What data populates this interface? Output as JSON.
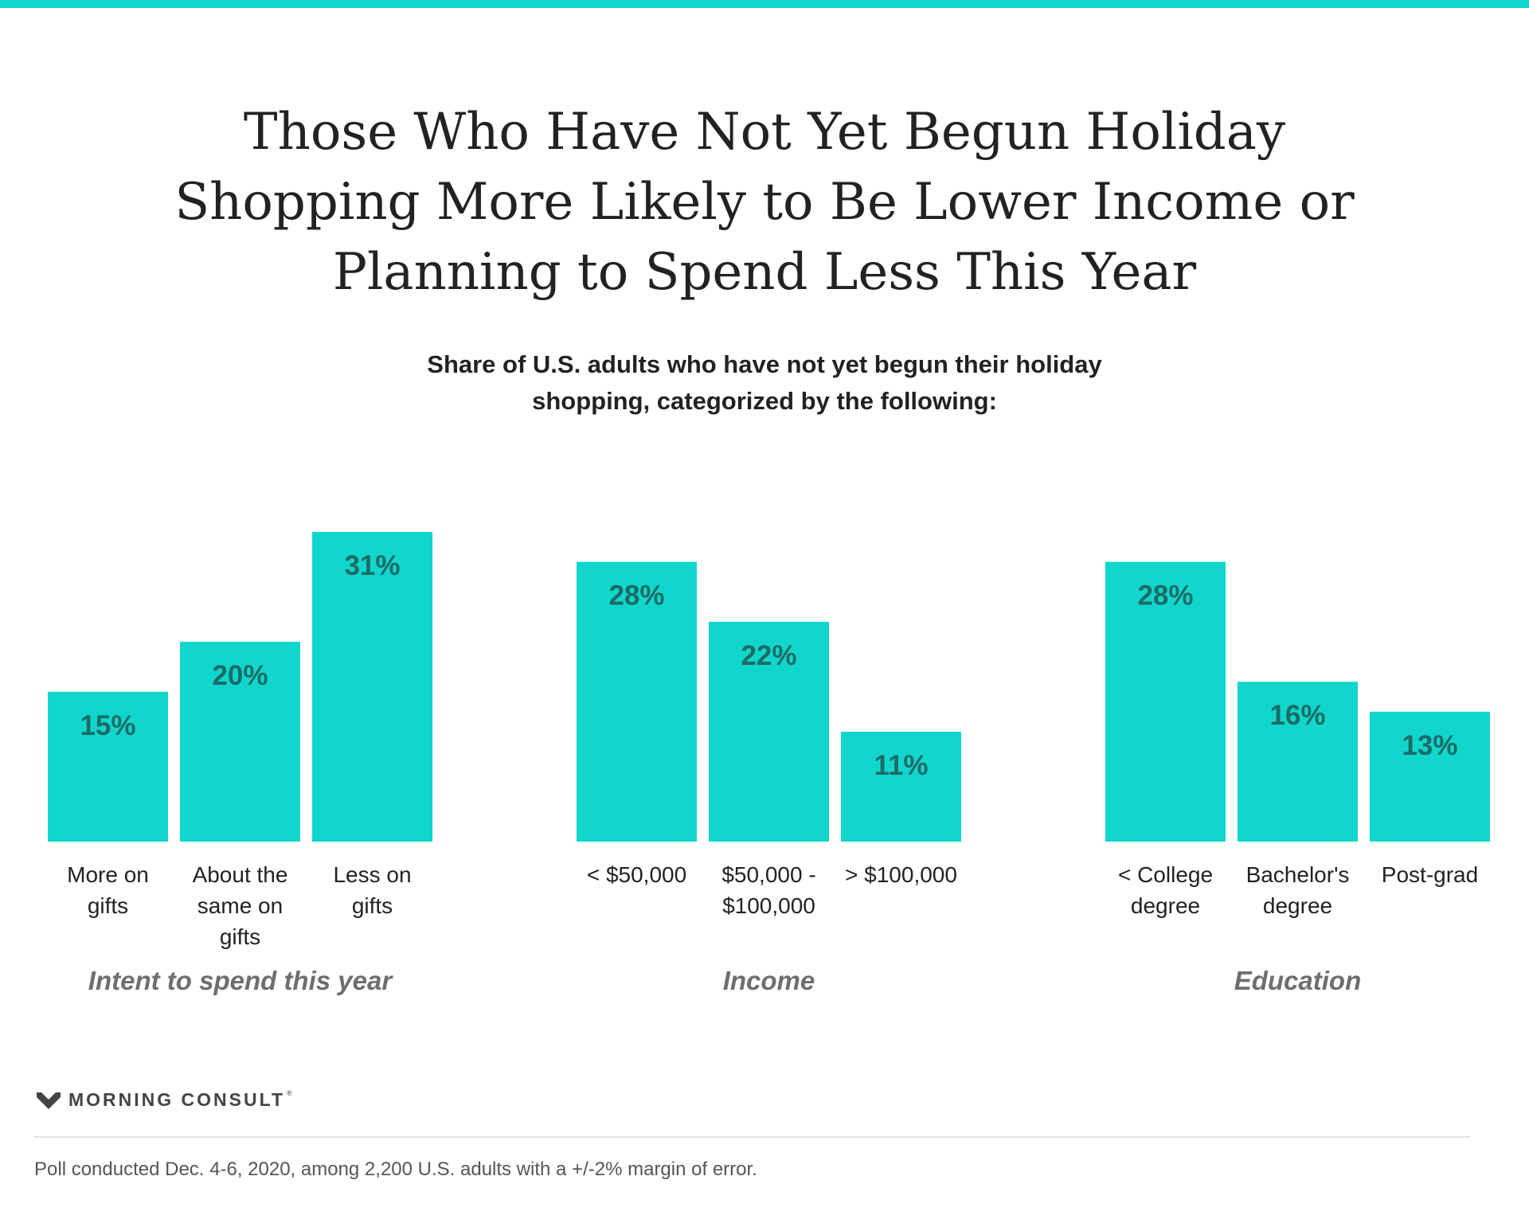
{
  "colors": {
    "accent": "#11d6cc",
    "value_label": "#1c6b67",
    "group_label": "#6e6e6e",
    "text": "#222222"
  },
  "title_lines": [
    "Those Who Have Not Yet Begun Holiday",
    "Shopping More Likely to Be Lower Income or",
    "Planning to Spend Less This Year"
  ],
  "subtitle_lines": [
    "Share of U.S. adults who have not yet begun their holiday",
    "shopping, categorized by the following:"
  ],
  "chart_data": {
    "type": "bar",
    "unit": "%",
    "ylim": [
      0,
      31
    ],
    "grid": false,
    "legend": "none",
    "groups": [
      {
        "name": "Intent to spend this year",
        "categories": [
          [
            "More on",
            "gifts"
          ],
          [
            "About the",
            "same on",
            "gifts"
          ],
          [
            "Less on",
            "gifts"
          ]
        ],
        "values": [
          15,
          20,
          31
        ],
        "labels": [
          "15%",
          "20%",
          "31%"
        ]
      },
      {
        "name": "Income",
        "categories": [
          [
            "< $50,000"
          ],
          [
            "$50,000 -",
            "$100,000"
          ],
          [
            "> $100,000"
          ]
        ],
        "values": [
          28,
          22,
          11
        ],
        "labels": [
          "28%",
          "22%",
          "11%"
        ]
      },
      {
        "name": "Education",
        "categories": [
          [
            "< College",
            "degree"
          ],
          [
            "Bachelor's",
            "degree"
          ],
          [
            "Post-grad"
          ]
        ],
        "values": [
          28,
          16,
          13
        ],
        "labels": [
          "28%",
          "16%",
          "13%"
        ]
      }
    ]
  },
  "footer": {
    "brand": "MORNING CONSULT",
    "trademark": "®",
    "note": "Poll conducted Dec. 4-6, 2020, among 2,200 U.S. adults with a +/-2% margin of error."
  }
}
